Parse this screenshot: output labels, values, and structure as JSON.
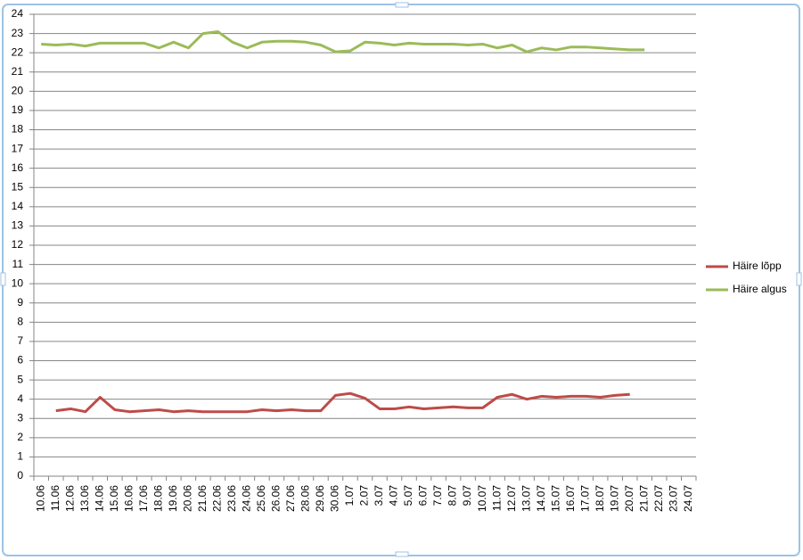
{
  "chart_data": {
    "type": "line",
    "categories": [
      "10.06",
      "11.06",
      "12.06",
      "13.06",
      "14.06",
      "15.06",
      "16.06",
      "17.06",
      "18.06",
      "19.06",
      "20.06",
      "21.06",
      "22.06",
      "23.06",
      "24.06",
      "25.06",
      "26.06",
      "27.06",
      "28.06",
      "29.06",
      "30.06",
      "1.07",
      "2.07",
      "3.07",
      "4.07",
      "5.07",
      "6.07",
      "7.07",
      "8.07",
      "9.07",
      "10.07",
      "11.07",
      "12.07",
      "13.07",
      "14.07",
      "15.07",
      "16.07",
      "17.07",
      "18.07",
      "19.07",
      "20.07",
      "21.07",
      "22.07",
      "23.07",
      "24.07"
    ],
    "series": [
      {
        "name": "Häire lõpp",
        "color": "#be4b48",
        "values": [
          null,
          3.4,
          3.5,
          3.35,
          4.1,
          3.45,
          3.35,
          3.4,
          3.45,
          3.35,
          3.4,
          3.35,
          3.35,
          3.35,
          3.35,
          3.45,
          3.4,
          3.45,
          3.4,
          3.4,
          4.2,
          4.3,
          4.05,
          3.5,
          3.5,
          3.6,
          3.5,
          3.55,
          3.6,
          3.55,
          3.55,
          4.1,
          4.25,
          4.0,
          4.15,
          4.1,
          4.15,
          4.15,
          4.1,
          4.2,
          4.25,
          null,
          null,
          null,
          null
        ]
      },
      {
        "name": "Häire algus",
        "color": "#9bbb59",
        "values": [
          22.45,
          22.4,
          22.45,
          22.35,
          22.5,
          22.5,
          22.5,
          22.5,
          22.25,
          22.55,
          22.25,
          23.0,
          23.1,
          22.55,
          22.25,
          22.55,
          22.6,
          22.6,
          22.55,
          22.4,
          22.05,
          22.1,
          22.55,
          22.5,
          22.4,
          22.5,
          22.45,
          22.45,
          22.45,
          22.4,
          22.45,
          22.25,
          22.4,
          22.05,
          22.25,
          22.15,
          22.3,
          22.3,
          22.25,
          22.2,
          22.15,
          22.15,
          null,
          null,
          null
        ]
      }
    ],
    "ylim": [
      0,
      24
    ],
    "yticks": [
      0,
      1,
      2,
      3,
      4,
      5,
      6,
      7,
      8,
      9,
      10,
      11,
      12,
      13,
      14,
      15,
      16,
      17,
      18,
      19,
      20,
      21,
      22,
      23,
      24
    ],
    "grid": true,
    "legend": "right"
  }
}
